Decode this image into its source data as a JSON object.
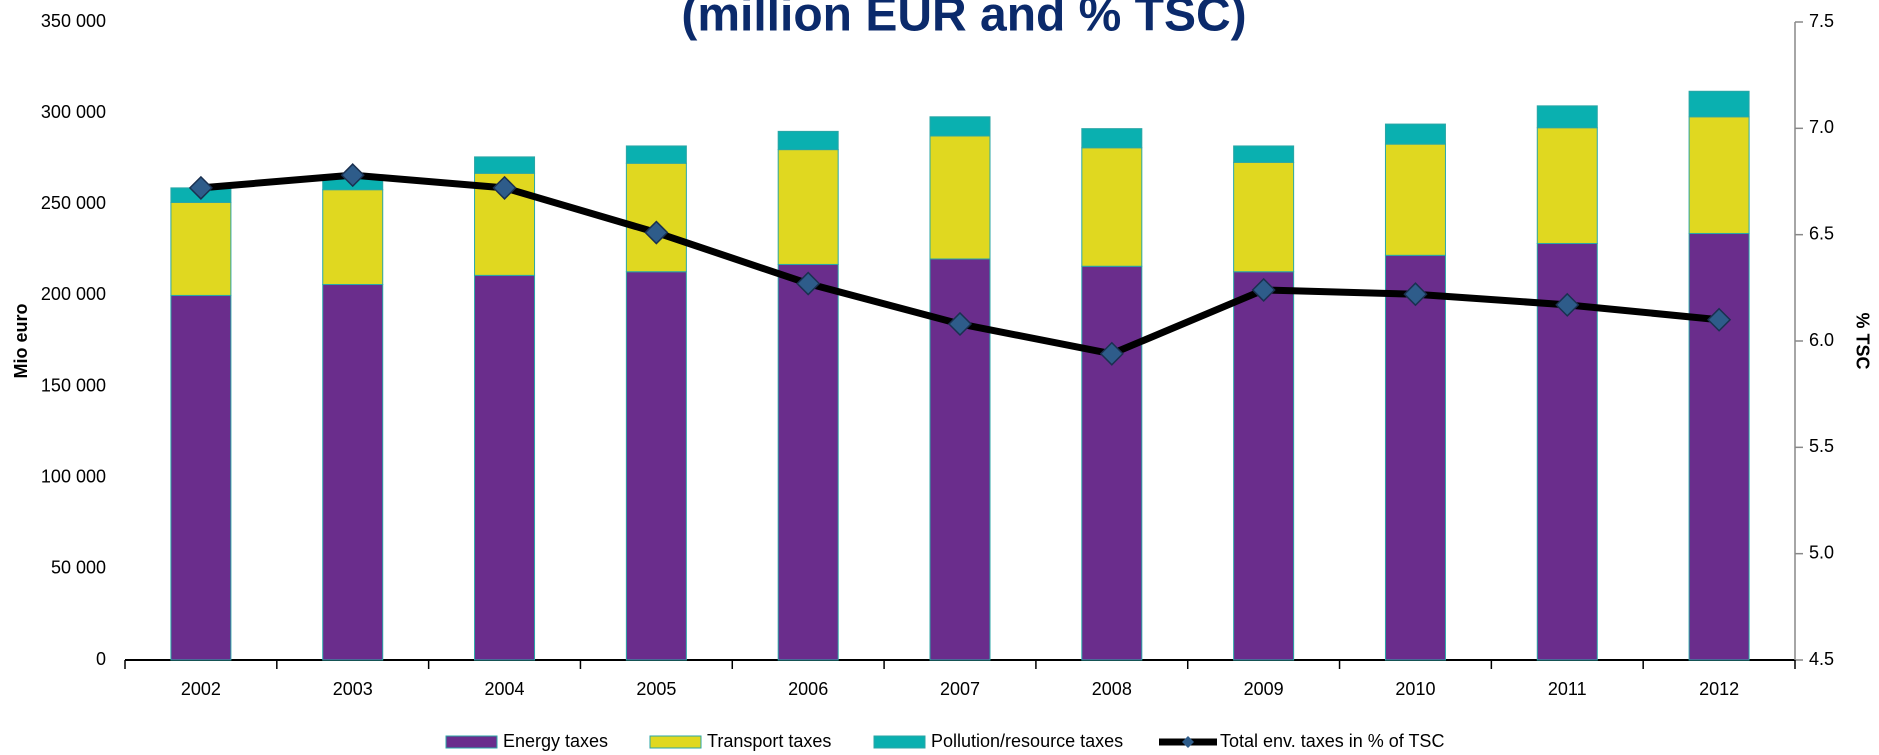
{
  "chart_data": {
    "type": "bar_line",
    "title": "(million EUR and % TSC)",
    "y_label": "Mio euro",
    "y2_label": "% TSC",
    "categories": [
      "2002",
      "2003",
      "2004",
      "2005",
      "2006",
      "2007",
      "2008",
      "2009",
      "2010",
      "2011",
      "2012"
    ],
    "series": [
      {
        "name": "Energy taxes",
        "color": "#6a2d8c",
        "values": [
          200000,
          206000,
          211000,
          213000,
          217000,
          220000,
          216000,
          213000,
          222000,
          228500,
          234000
        ]
      },
      {
        "name": "Transport taxes",
        "color": "#e0d820",
        "values": [
          51000,
          52000,
          56000,
          59500,
          63000,
          67500,
          65000,
          60000,
          61000,
          63500,
          64000
        ]
      },
      {
        "name": "Pollution/resource taxes",
        "color": "#0ab0b0",
        "values": [
          8000,
          6500,
          9000,
          9500,
          10000,
          10500,
          10500,
          9000,
          11000,
          12000,
          14000
        ]
      },
      {
        "name": "Total env. taxes in % of TSC",
        "color": "#000000",
        "marker_color": "#2e5c8a",
        "axis": "y2",
        "values": [
          6.72,
          6.78,
          6.72,
          6.51,
          6.27,
          6.08,
          5.94,
          6.24,
          6.22,
          6.17,
          6.1
        ]
      }
    ],
    "ylim": [
      0,
      350000
    ],
    "yticks": [
      {
        "value": 0,
        "label": "0"
      },
      {
        "value": 50000,
        "label": "50 000"
      },
      {
        "value": 100000,
        "label": "100 000"
      },
      {
        "value": 150000,
        "label": "150 000"
      },
      {
        "value": 200000,
        "label": "200 000"
      },
      {
        "value": 250000,
        "label": "250 000"
      },
      {
        "value": 300000,
        "label": "300 000"
      },
      {
        "value": 350000,
        "label": "350 000"
      }
    ],
    "y2lim": [
      4.5,
      7.5
    ],
    "y2ticks": [
      4.5,
      {
        "value": 5,
        "label": "5.0"
      },
      5.5,
      {
        "value": 6,
        "label": "6.0"
      },
      6.5,
      {
        "value": 7,
        "label": "7.0"
      },
      7.5
    ],
    "legend": "bottom"
  }
}
